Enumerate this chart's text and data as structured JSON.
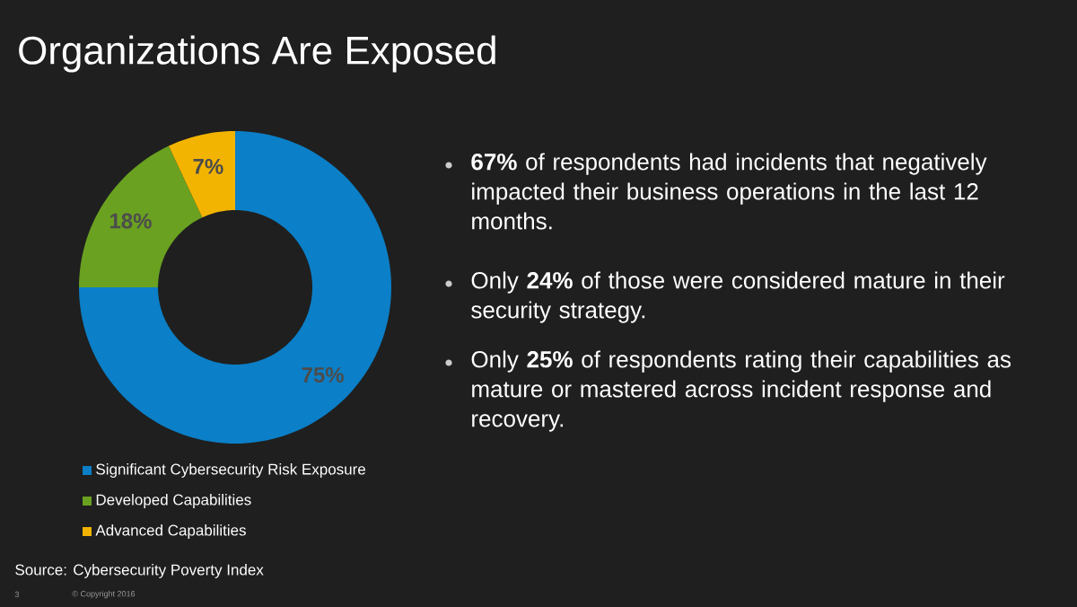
{
  "chart_data": {
    "type": "donut",
    "title": "Organizations Are Exposed",
    "categories": [
      "Significant Cybersecurity Risk Exposure",
      "Developed Capabilities",
      "Advanced Capabilities"
    ],
    "values": [
      75,
      18,
      7
    ],
    "value_labels": [
      "75%",
      "18%",
      "7%"
    ],
    "colors": [
      "#0b7fc7",
      "#6aa121",
      "#f2b400"
    ],
    "legend": "bottom",
    "annotations": [
      "**67%** of respondents had incidents that negatively impacted their business operations in the last 12 months.",
      "Only **24%** of those were considered mature in their security strategy.",
      "Only **25%** of respondents rating their capabilities as mature or mastered across incident response and recovery.",
      "Source: Cybersecurity Poverty Index",
      "3",
      "© Copyright 2016"
    ]
  }
}
